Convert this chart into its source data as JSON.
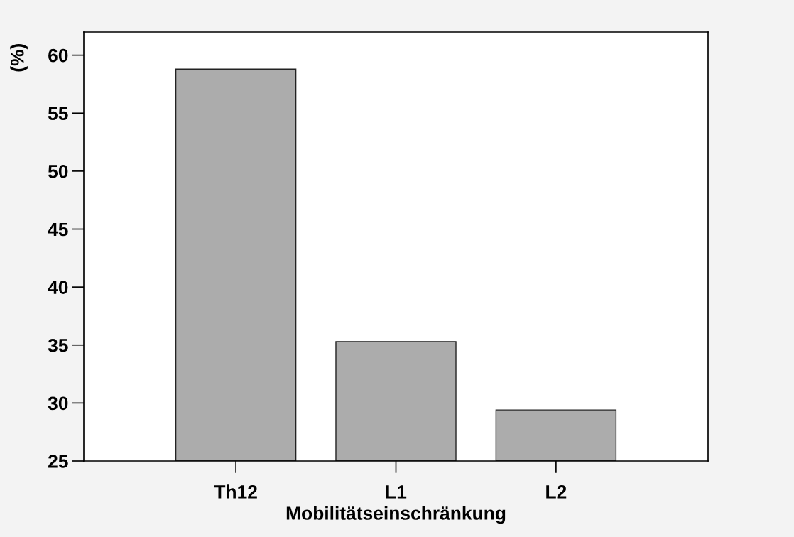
{
  "chart_data": {
    "type": "bar",
    "ylabel": "(%)",
    "xlabel": "Mobilitätseinschränkung",
    "categories": [
      "Th12",
      "L1",
      "L2"
    ],
    "values": [
      58.8,
      35.3,
      29.4
    ],
    "color": "#acacac",
    "ylim": [
      25,
      62
    ],
    "yticks": [
      25,
      30,
      35,
      40,
      45,
      50,
      55,
      60
    ],
    "grid": false
  }
}
